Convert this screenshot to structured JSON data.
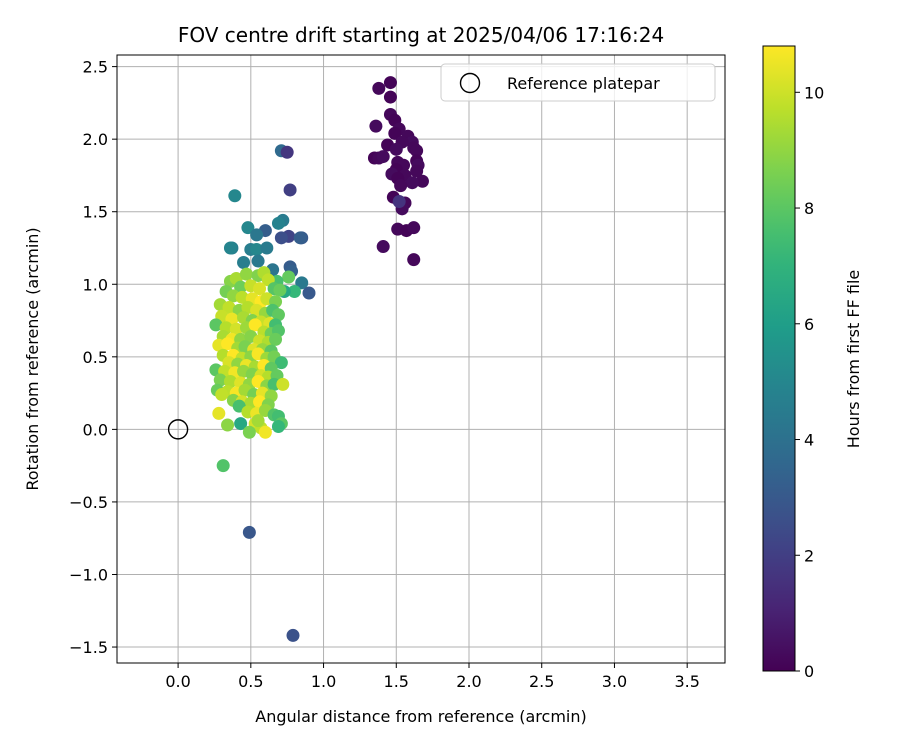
{
  "chart_data": {
    "type": "scatter",
    "title": "FOV centre drift starting at 2025/04/06 17:16:24",
    "xlabel": "Angular distance from reference (arcmin)",
    "ylabel": "Rotation from reference (arcmin)",
    "xlim": [
      -0.42,
      3.76
    ],
    "ylim": [
      -1.61,
      2.58
    ],
    "x_ticks": [
      0.0,
      0.5,
      1.0,
      1.5,
      2.0,
      2.5,
      3.0,
      3.5
    ],
    "x_tick_labels": [
      "0.0",
      "0.5",
      "1.0",
      "1.5",
      "2.0",
      "2.5",
      "3.0",
      "3.5"
    ],
    "y_ticks": [
      -1.5,
      -1.0,
      -0.5,
      0.0,
      0.5,
      1.0,
      1.5,
      2.0,
      2.5
    ],
    "y_tick_labels": [
      "−1.5",
      "−1.0",
      "−0.5",
      "0.0",
      "0.5",
      "1.0",
      "1.5",
      "2.0",
      "2.5"
    ],
    "grid": true,
    "legend": {
      "placement": "top-right",
      "entries": [
        "Reference platepar"
      ]
    },
    "reference_point": {
      "x": 0.0,
      "y": 0.0
    },
    "colorbar": {
      "label": "Hours from first FF file",
      "range": [
        0,
        10.8
      ],
      "ticks": [
        0,
        2,
        4,
        6,
        8,
        10
      ],
      "tick_labels": [
        "0",
        "2",
        "4",
        "6",
        "8",
        "10"
      ],
      "colormap": "viridis"
    },
    "points": [
      [
        1.46,
        2.39,
        0.1
      ],
      [
        1.38,
        2.35,
        0.2
      ],
      [
        1.46,
        2.29,
        0.1
      ],
      [
        1.46,
        2.17,
        0.2
      ],
      [
        1.49,
        2.13,
        0.1
      ],
      [
        1.36,
        2.09,
        0.3
      ],
      [
        1.52,
        2.07,
        0.2
      ],
      [
        1.49,
        2.04,
        0.1
      ],
      [
        1.58,
        2.02,
        0.2
      ],
      [
        1.61,
        1.98,
        0.3
      ],
      [
        1.54,
        1.98,
        0.2
      ],
      [
        1.44,
        1.96,
        0.1
      ],
      [
        1.62,
        1.94,
        0.2
      ],
      [
        1.5,
        1.93,
        0.3
      ],
      [
        1.64,
        1.92,
        0.2
      ],
      [
        1.35,
        1.87,
        0.1
      ],
      [
        1.38,
        1.87,
        0.2
      ],
      [
        1.41,
        1.88,
        0.3
      ],
      [
        1.64,
        1.85,
        0.1
      ],
      [
        1.51,
        1.84,
        0.2
      ],
      [
        1.65,
        1.82,
        0.3
      ],
      [
        1.55,
        1.82,
        0.2
      ],
      [
        1.5,
        1.79,
        0.1
      ],
      [
        1.64,
        1.78,
        0.2
      ],
      [
        1.47,
        1.76,
        0.3
      ],
      [
        1.56,
        1.75,
        0.2
      ],
      [
        1.51,
        1.73,
        0.1
      ],
      [
        1.68,
        1.71,
        0.2
      ],
      [
        1.61,
        1.7,
        0.3
      ],
      [
        1.53,
        1.68,
        0.2
      ],
      [
        1.48,
        1.6,
        0.1
      ],
      [
        1.56,
        1.56,
        0.2
      ],
      [
        1.54,
        1.52,
        0.3
      ],
      [
        1.51,
        1.38,
        0.2
      ],
      [
        1.57,
        1.37,
        0.1
      ],
      [
        1.62,
        1.39,
        0.2
      ],
      [
        1.41,
        1.26,
        0.3
      ],
      [
        1.62,
        1.17,
        0.2
      ],
      [
        1.52,
        1.57,
        1.6
      ],
      [
        0.71,
        1.92,
        3.7
      ],
      [
        0.75,
        1.91,
        1.7
      ],
      [
        0.77,
        1.65,
        2.0
      ],
      [
        0.39,
        1.61,
        5.0
      ],
      [
        0.72,
        1.44,
        4.5
      ],
      [
        0.69,
        1.42,
        4.8
      ],
      [
        0.48,
        1.39,
        5.0
      ],
      [
        0.6,
        1.37,
        3.2
      ],
      [
        0.76,
        1.33,
        2.2
      ],
      [
        0.71,
        1.32,
        2.6
      ],
      [
        0.85,
        1.32,
        3.0
      ],
      [
        0.84,
        1.32,
        3.2
      ],
      [
        0.54,
        1.34,
        4.3
      ],
      [
        0.37,
        1.25,
        4.6
      ],
      [
        0.36,
        1.25,
        4.9
      ],
      [
        0.5,
        1.24,
        4.6
      ],
      [
        0.54,
        1.24,
        5.0
      ],
      [
        0.61,
        1.25,
        4.5
      ],
      [
        0.55,
        1.16,
        4.4
      ],
      [
        0.45,
        1.15,
        4.6
      ],
      [
        0.65,
        1.1,
        4.2
      ],
      [
        0.77,
        1.12,
        3.1
      ],
      [
        0.78,
        1.09,
        3.3
      ],
      [
        0.85,
        1.01,
        4.4
      ],
      [
        0.9,
        0.94,
        3.0
      ],
      [
        0.8,
        0.95,
        7.2
      ],
      [
        0.76,
        1.05,
        8.2
      ],
      [
        0.68,
        1.02,
        7.6
      ],
      [
        0.73,
        0.95,
        6.5
      ],
      [
        0.49,
        0.71,
        3.0
      ],
      [
        0.49,
        -0.71,
        2.9
      ],
      [
        0.79,
        -1.42,
        2.7
      ],
      [
        0.31,
        -0.25,
        7.8
      ],
      [
        0.36,
        1.02,
        8.8
      ],
      [
        0.4,
        1.04,
        9.4
      ],
      [
        0.47,
        1.07,
        9.0
      ],
      [
        0.55,
        1.06,
        8.7
      ],
      [
        0.59,
        1.08,
        9.5
      ],
      [
        0.62,
        1.03,
        9.8
      ],
      [
        0.43,
        0.98,
        8.4
      ],
      [
        0.5,
        0.99,
        9.9
      ],
      [
        0.56,
        0.97,
        10.2
      ],
      [
        0.66,
        0.97,
        7.9
      ],
      [
        0.7,
        0.96,
        8.3
      ],
      [
        0.33,
        0.95,
        8.5
      ],
      [
        0.38,
        0.92,
        9.0
      ],
      [
        0.44,
        0.91,
        9.7
      ],
      [
        0.51,
        0.9,
        10.4
      ],
      [
        0.57,
        0.88,
        10.8
      ],
      [
        0.61,
        0.9,
        10.0
      ],
      [
        0.67,
        0.88,
        8.6
      ],
      [
        0.29,
        0.86,
        9.3
      ],
      [
        0.35,
        0.84,
        9.8
      ],
      [
        0.42,
        0.82,
        8.9
      ],
      [
        0.48,
        0.84,
        9.6
      ],
      [
        0.54,
        0.82,
        10.2
      ],
      [
        0.6,
        0.8,
        9.1
      ],
      [
        0.65,
        0.82,
        7.7
      ],
      [
        0.69,
        0.79,
        8.1
      ],
      [
        0.3,
        0.78,
        9.9
      ],
      [
        0.37,
        0.76,
        10.5
      ],
      [
        0.45,
        0.77,
        9.4
      ],
      [
        0.51,
        0.75,
        8.7
      ],
      [
        0.57,
        0.74,
        9.9
      ],
      [
        0.63,
        0.73,
        10.3
      ],
      [
        0.67,
        0.72,
        7.5
      ],
      [
        0.26,
        0.72,
        8.0
      ],
      [
        0.33,
        0.7,
        9.6
      ],
      [
        0.4,
        0.69,
        10.1
      ],
      [
        0.47,
        0.7,
        9.2
      ],
      [
        0.53,
        0.72,
        10.8
      ],
      [
        0.59,
        0.67,
        9.7
      ],
      [
        0.64,
        0.66,
        8.4
      ],
      [
        0.69,
        0.68,
        7.8
      ],
      [
        0.31,
        0.64,
        9.4
      ],
      [
        0.37,
        0.62,
        10.6
      ],
      [
        0.43,
        0.62,
        9.0
      ],
      [
        0.5,
        0.64,
        8.8
      ],
      [
        0.56,
        0.61,
        10.0
      ],
      [
        0.62,
        0.6,
        9.5
      ],
      [
        0.67,
        0.62,
        8.3
      ],
      [
        0.28,
        0.58,
        10.4
      ],
      [
        0.34,
        0.59,
        10.8
      ],
      [
        0.41,
        0.56,
        9.3
      ],
      [
        0.46,
        0.57,
        8.6
      ],
      [
        0.52,
        0.55,
        10.3
      ],
      [
        0.58,
        0.55,
        9.1
      ],
      [
        0.64,
        0.54,
        8.0
      ],
      [
        0.31,
        0.51,
        9.6
      ],
      [
        0.38,
        0.51,
        10.9
      ],
      [
        0.44,
        0.49,
        9.8
      ],
      [
        0.5,
        0.5,
        8.9
      ],
      [
        0.55,
        0.52,
        10.7
      ],
      [
        0.61,
        0.49,
        9.2
      ],
      [
        0.66,
        0.5,
        8.5
      ],
      [
        0.71,
        0.46,
        7.4
      ],
      [
        0.35,
        0.46,
        10.2
      ],
      [
        0.41,
        0.45,
        9.0
      ],
      [
        0.47,
        0.44,
        10.5
      ],
      [
        0.53,
        0.43,
        9.4
      ],
      [
        0.59,
        0.44,
        10.9
      ],
      [
        0.64,
        0.42,
        8.1
      ],
      [
        0.26,
        0.41,
        8.0
      ],
      [
        0.32,
        0.4,
        9.8
      ],
      [
        0.39,
        0.39,
        10.6
      ],
      [
        0.45,
        0.4,
        9.1
      ],
      [
        0.51,
        0.38,
        8.7
      ],
      [
        0.57,
        0.37,
        10.1
      ],
      [
        0.62,
        0.36,
        9.6
      ],
      [
        0.68,
        0.37,
        8.2
      ],
      [
        0.29,
        0.34,
        8.6
      ],
      [
        0.36,
        0.33,
        9.5
      ],
      [
        0.43,
        0.32,
        10.3
      ],
      [
        0.49,
        0.31,
        9.0
      ],
      [
        0.55,
        0.33,
        10.8
      ],
      [
        0.61,
        0.3,
        8.9
      ],
      [
        0.66,
        0.31,
        7.6
      ],
      [
        0.72,
        0.31,
        10.0
      ],
      [
        0.27,
        0.27,
        8.3
      ],
      [
        0.34,
        0.26,
        9.7
      ],
      [
        0.4,
        0.25,
        10.7
      ],
      [
        0.46,
        0.27,
        9.3
      ],
      [
        0.52,
        0.24,
        8.5
      ],
      [
        0.58,
        0.25,
        10.4
      ],
      [
        0.64,
        0.23,
        9.0
      ],
      [
        0.3,
        0.24,
        9.8
      ],
      [
        0.38,
        0.2,
        8.8
      ],
      [
        0.44,
        0.19,
        10.1
      ],
      [
        0.5,
        0.18,
        9.4
      ],
      [
        0.56,
        0.19,
        10.9
      ],
      [
        0.62,
        0.17,
        8.7
      ],
      [
        0.42,
        0.16,
        7.6
      ],
      [
        0.48,
        0.12,
        9.6
      ],
      [
        0.54,
        0.11,
        10.5
      ],
      [
        0.6,
        0.13,
        9.1
      ],
      [
        0.66,
        0.1,
        7.8
      ],
      [
        0.28,
        0.11,
        10.4
      ],
      [
        0.69,
        0.09,
        7.5
      ],
      [
        0.71,
        0.04,
        8.0
      ],
      [
        0.34,
        0.03,
        8.9
      ],
      [
        0.43,
        0.04,
        6.5
      ],
      [
        0.53,
        0.04,
        10.1
      ],
      [
        0.57,
        0.01,
        9.8
      ],
      [
        0.69,
        0.02,
        7.2
      ],
      [
        0.49,
        -0.02,
        8.6
      ],
      [
        0.6,
        -0.02,
        10.6
      ],
      [
        0.55,
        0.06,
        9.3
      ]
    ]
  }
}
